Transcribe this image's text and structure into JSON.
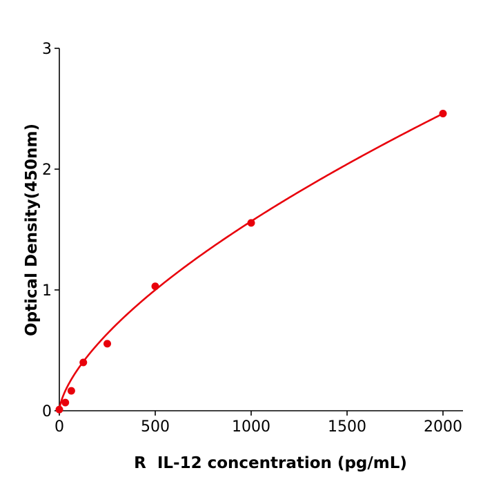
{
  "chart_data": {
    "type": "scatter",
    "title": "",
    "xlabel": "R  IL-12 concentration (pg/mL)",
    "ylabel": "Optical Density(450nm)",
    "xlim": [
      0,
      2100
    ],
    "ylim": [
      0,
      3
    ],
    "xticks": [
      0,
      500,
      1000,
      1500,
      2000
    ],
    "yticks": [
      0,
      1,
      2,
      3
    ],
    "xtick_labels": [
      "0",
      "500",
      "1000",
      "1500",
      "2000"
    ],
    "ytick_labels": [
      "0",
      "1",
      "2",
      "3"
    ],
    "grid": false,
    "legend": "none",
    "color": "#e8000b",
    "points": [
      {
        "x": 0,
        "y": 0.01
      },
      {
        "x": 31.25,
        "y": 0.068
      },
      {
        "x": 62.5,
        "y": 0.165
      },
      {
        "x": 125,
        "y": 0.4
      },
      {
        "x": 250,
        "y": 0.555
      },
      {
        "x": 500,
        "y": 1.03
      },
      {
        "x": 1000,
        "y": 1.555
      },
      {
        "x": 2000,
        "y": 2.46
      }
    ],
    "fit_curve": "standard curve through points"
  }
}
